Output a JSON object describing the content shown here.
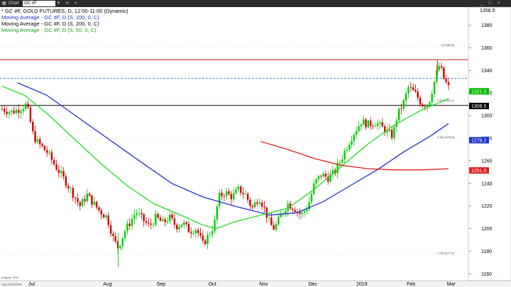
{
  "window": {
    "title": "Chart",
    "symbol_box": "GC #F",
    "right_value": "1358.5"
  },
  "legend": {
    "main": "* GC #F, GOLD FUTURES, D, 12:00-11:00 (Dynamic)",
    "ma100": "Moving Average - GC #F, D (S, 100, 0, C)",
    "ma200": "Moving Average - GC #F, D (S, 200, 0, C)",
    "ma50": "Moving Average - GC #F, D (S, 50, 0, C)"
  },
  "colors": {
    "up": "#00cc00",
    "down": "#cc0000",
    "ma100": "#1f33cc",
    "ma200": "#dd2020",
    "ma50": "#22dd22",
    "resistance": "#e03030",
    "dashed": "#4a90e2",
    "support": "#000000"
  },
  "chart_data": {
    "type": "candlestick",
    "ylim": [
      1154,
      1396
    ],
    "y_ticks": [
      1160,
      1180,
      1200,
      1220,
      1240,
      1260,
      1280,
      1300,
      1320,
      1340,
      1360,
      1380
    ],
    "x_labels": [
      {
        "label": "Jul",
        "pos": 0.05
      },
      {
        "label": "Aug",
        "pos": 0.22
      },
      {
        "label": "Sep",
        "pos": 0.34
      },
      {
        "label": "Oct",
        "pos": 0.455
      },
      {
        "label": "Nov",
        "pos": 0.57
      },
      {
        "label": "Dec",
        "pos": 0.68
      },
      {
        "label": "2019",
        "pos": 0.79
      },
      {
        "label": "Feb",
        "pos": 0.9
      },
      {
        "label": "Mar",
        "pos": 0.99
      }
    ],
    "bottom_left_label": "Day 06/20/2018",
    "bottom_watermark": "eSignal, 2019",
    "price_path": [
      [
        0.0,
        1306
      ],
      [
        0.02,
        1303
      ],
      [
        0.04,
        1306
      ],
      [
        0.055,
        1310
      ],
      [
        0.07,
        1282
      ],
      [
        0.08,
        1276
      ],
      [
        0.1,
        1268
      ],
      [
        0.12,
        1255
      ],
      [
        0.14,
        1243
      ],
      [
        0.16,
        1230
      ],
      [
        0.175,
        1220
      ],
      [
        0.19,
        1230
      ],
      [
        0.205,
        1222
      ],
      [
        0.22,
        1215
      ],
      [
        0.235,
        1210
      ],
      [
        0.25,
        1190
      ],
      [
        0.26,
        1183
      ],
      [
        0.275,
        1198
      ],
      [
        0.29,
        1208
      ],
      [
        0.3,
        1215
      ],
      [
        0.315,
        1208
      ],
      [
        0.33,
        1202
      ],
      [
        0.345,
        1210
      ],
      [
        0.36,
        1205
      ],
      [
        0.375,
        1210
      ],
      [
        0.39,
        1202
      ],
      [
        0.405,
        1205
      ],
      [
        0.42,
        1198
      ],
      [
        0.435,
        1200
      ],
      [
        0.45,
        1186
      ],
      [
        0.465,
        1196
      ],
      [
        0.475,
        1203
      ],
      [
        0.485,
        1228
      ],
      [
        0.5,
        1232
      ],
      [
        0.515,
        1228
      ],
      [
        0.53,
        1235
      ],
      [
        0.545,
        1230
      ],
      [
        0.56,
        1218
      ],
      [
        0.575,
        1228
      ],
      [
        0.585,
        1220
      ],
      [
        0.6,
        1204
      ],
      [
        0.61,
        1200
      ],
      [
        0.625,
        1212
      ],
      [
        0.64,
        1222
      ],
      [
        0.655,
        1218
      ],
      [
        0.67,
        1212
      ],
      [
        0.685,
        1220
      ],
      [
        0.7,
        1240
      ],
      [
        0.715,
        1248
      ],
      [
        0.73,
        1245
      ],
      [
        0.745,
        1250
      ],
      [
        0.76,
        1262
      ],
      [
        0.775,
        1275
      ],
      [
        0.79,
        1286
      ],
      [
        0.805,
        1295
      ],
      [
        0.82,
        1292
      ],
      [
        0.835,
        1294
      ],
      [
        0.85,
        1290
      ],
      [
        0.865,
        1285
      ],
      [
        0.875,
        1282
      ],
      [
        0.885,
        1300
      ],
      [
        0.9,
        1312
      ],
      [
        0.91,
        1325
      ],
      [
        0.925,
        1320
      ],
      [
        0.94,
        1310
      ],
      [
        0.955,
        1310
      ],
      [
        0.965,
        1325
      ],
      [
        0.975,
        1340
      ],
      [
        0.98,
        1345
      ],
      [
        0.99,
        1332
      ],
      [
        1.0,
        1325
      ]
    ],
    "ma100_path": [
      [
        0.035,
        1329
      ],
      [
        0.1,
        1318
      ],
      [
        0.2,
        1290
      ],
      [
        0.3,
        1262
      ],
      [
        0.38,
        1240
      ],
      [
        0.45,
        1228
      ],
      [
        0.52,
        1220
      ],
      [
        0.6,
        1212
      ],
      [
        0.66,
        1214
      ],
      [
        0.72,
        1224
      ],
      [
        0.78,
        1238
      ],
      [
        0.84,
        1252
      ],
      [
        0.9,
        1268
      ],
      [
        0.96,
        1282
      ],
      [
        1.0,
        1293
      ]
    ],
    "ma50_path": [
      [
        0.0,
        1326
      ],
      [
        0.05,
        1318
      ],
      [
        0.1,
        1302
      ],
      [
        0.16,
        1280
      ],
      [
        0.22,
        1258
      ],
      [
        0.28,
        1238
      ],
      [
        0.34,
        1222
      ],
      [
        0.4,
        1212
      ],
      [
        0.45,
        1203
      ],
      [
        0.48,
        1200
      ],
      [
        0.52,
        1206
      ],
      [
        0.58,
        1212
      ],
      [
        0.64,
        1218
      ],
      [
        0.7,
        1235
      ],
      [
        0.76,
        1255
      ],
      [
        0.82,
        1275
      ],
      [
        0.88,
        1292
      ],
      [
        0.94,
        1305
      ],
      [
        1.0,
        1315
      ]
    ],
    "ma200_path": [
      [
        0.58,
        1277
      ],
      [
        0.64,
        1270
      ],
      [
        0.7,
        1262
      ],
      [
        0.76,
        1256
      ],
      [
        0.82,
        1253
      ],
      [
        0.88,
        1252
      ],
      [
        0.94,
        1252
      ],
      [
        1.0,
        1253
      ]
    ],
    "levels": [
      {
        "name": "resistance-line",
        "price": 1349.5
      },
      {
        "name": "dashed-line",
        "price": 1333
      },
      {
        "name": "support-line",
        "price": 1309
      }
    ],
    "fib_labels": [
      {
        "text": "0 (1360.8)",
        "price": 1361
      },
      {
        "text": "0.23 (1312.1)",
        "price": 1312
      },
      {
        "text": "0.38 (1279.8)",
        "price": 1279.5
      },
      {
        "text": "0.78 (1177.0)",
        "price": 1177
      }
    ],
    "price_tags": [
      {
        "text": "1321.5",
        "price": 1321.5,
        "color": "#00bb00"
      },
      {
        "text": "1308.5",
        "price": 1308.5,
        "color": "#000000"
      },
      {
        "text": "1278.2",
        "price": 1278.2,
        "color": "#1f33cc"
      },
      {
        "text": "1251.5",
        "price": 1251.5,
        "color": "#dd2020"
      }
    ]
  }
}
